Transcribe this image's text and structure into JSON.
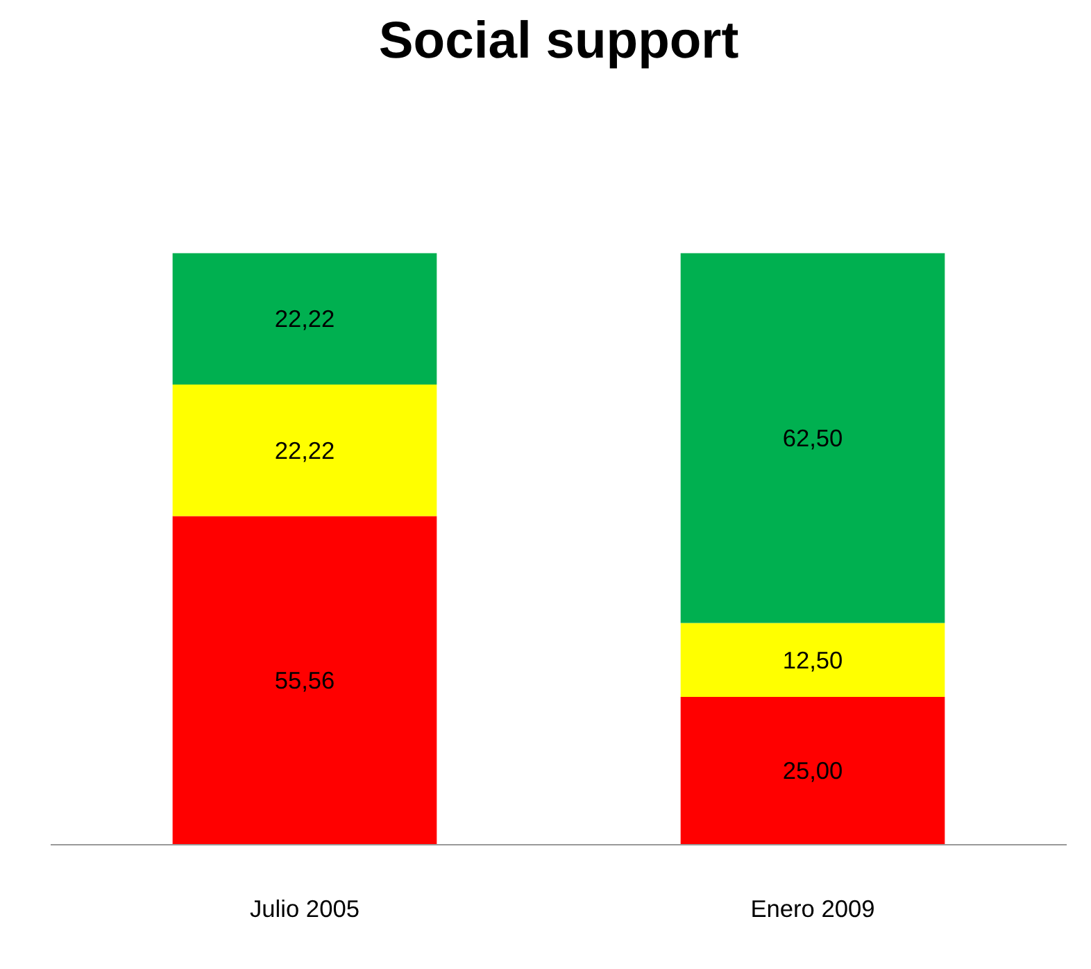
{
  "chart_data": {
    "type": "bar",
    "title": "Social support",
    "stacked": true,
    "categories": [
      "Julio 2005",
      "Enero 2009"
    ],
    "series": [
      {
        "color": "#ff0000",
        "values": [
          55.56,
          25.0
        ],
        "value_labels": [
          "55,56",
          "25,00"
        ]
      },
      {
        "color": "#ffff00",
        "values": [
          22.22,
          12.5
        ],
        "value_labels": [
          "22,22",
          "12,50"
        ]
      },
      {
        "color": "#00b050",
        "values": [
          22.22,
          62.5
        ],
        "value_labels": [
          "22,22",
          "62,50"
        ]
      }
    ],
    "grid": false
  }
}
